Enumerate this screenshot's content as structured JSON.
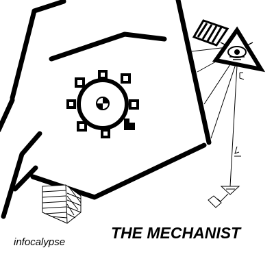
{
  "title": "THE MECHANIST",
  "brand": "infocalypse",
  "artwork": {
    "ink_color": "#000000",
    "paper_color": "#ffffff",
    "elements": [
      "hand-outline",
      "gear-icon",
      "triangle-eye-icon",
      "striped-tile-icon",
      "hatched-prism-icon",
      "plumb-line"
    ]
  }
}
